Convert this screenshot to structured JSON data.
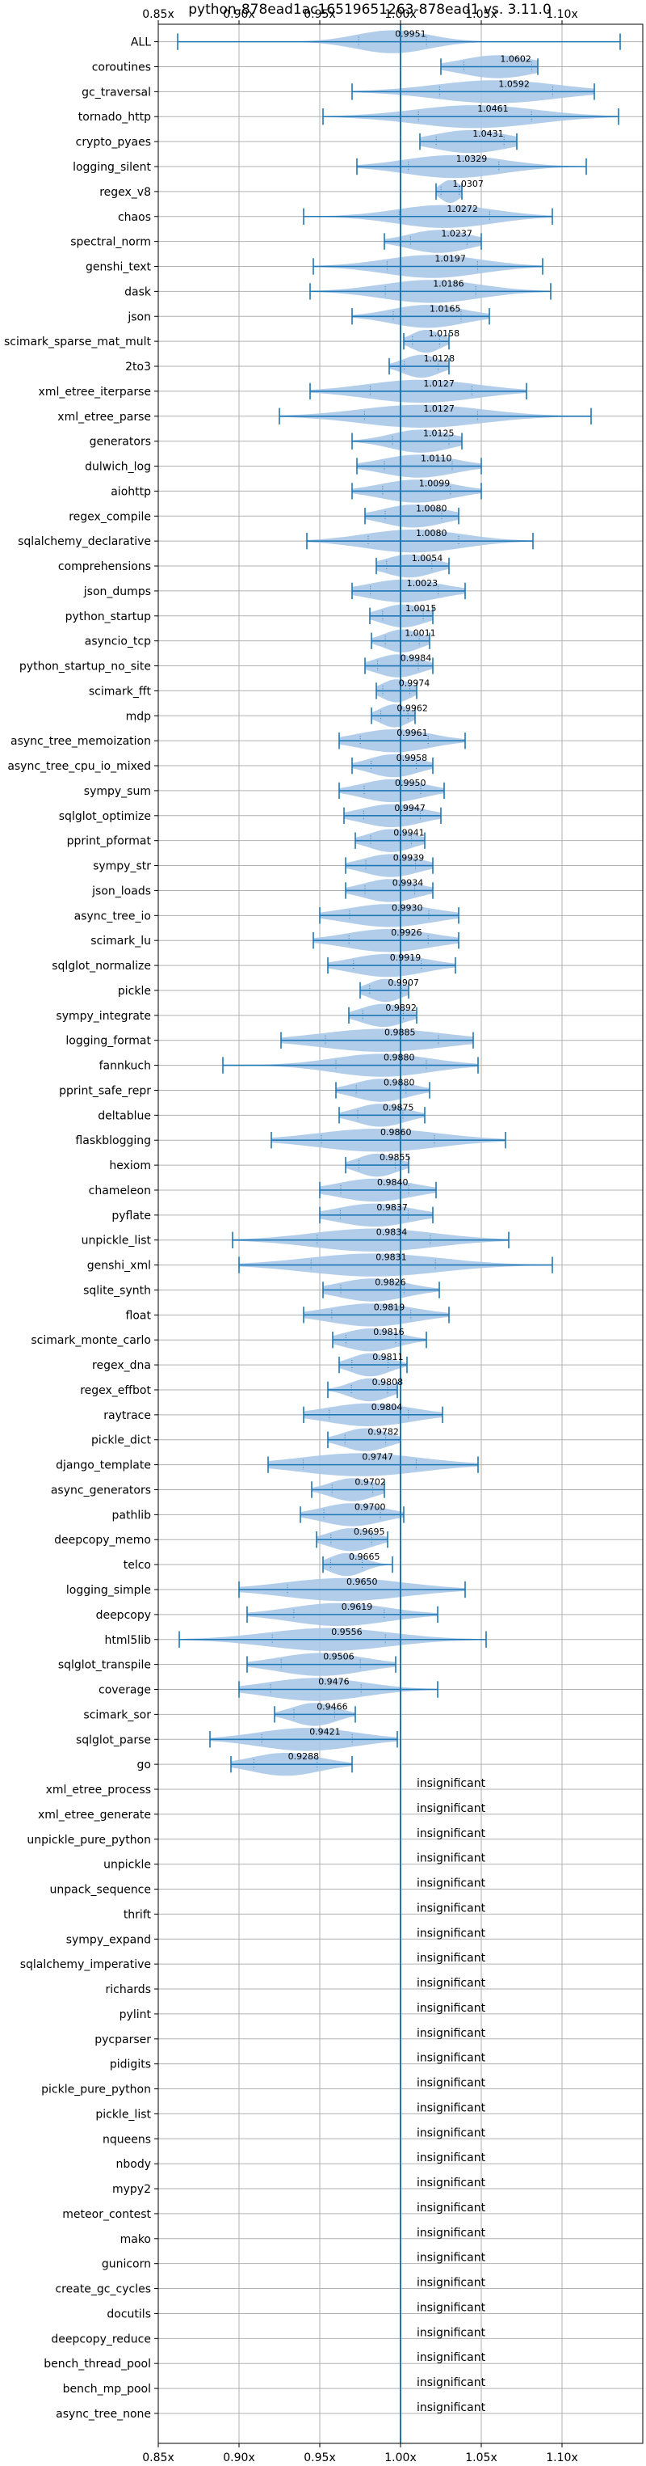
{
  "chart_data": {
    "type": "violin",
    "title": "python-878ead1ac16519651263-878ead1 vs. 3.11.0",
    "x_tick_labels": [
      "0.85x",
      "0.90x",
      "0.95x",
      "1.00x",
      "1.05x",
      "1.10x"
    ],
    "x_ticks": [
      0.85,
      0.9,
      0.95,
      1.0,
      1.05,
      1.1
    ],
    "xlim": [
      0.85,
      1.15
    ],
    "reference_line": 1.0,
    "grid": true,
    "colors": {
      "body": "#aac8e8",
      "line": "#1f77b4",
      "grid": "#b0b0b0"
    },
    "insignificant_text": "insignificant",
    "benchmarks": [
      {
        "name": "ALL",
        "label": "0.9951",
        "mean": 0.9951,
        "min": 0.862,
        "max": 1.136,
        "spread": 0.03
      },
      {
        "name": "coroutines",
        "label": "1.0602",
        "mean": 1.0602,
        "min": 1.025,
        "max": 1.085,
        "spread": 0.03
      },
      {
        "name": "gc_traversal",
        "label": "1.0592",
        "mean": 1.0592,
        "min": 0.97,
        "max": 1.12,
        "spread": 0.05
      },
      {
        "name": "tornado_http",
        "label": "1.0461",
        "mean": 1.0461,
        "min": 0.952,
        "max": 1.135,
        "spread": 0.05
      },
      {
        "name": "crypto_pyaes",
        "label": "1.0431",
        "mean": 1.0431,
        "min": 1.012,
        "max": 1.072,
        "spread": 0.03
      },
      {
        "name": "logging_silent",
        "label": "1.0329",
        "mean": 1.0329,
        "min": 0.973,
        "max": 1.115,
        "spread": 0.04
      },
      {
        "name": "regex_v8",
        "label": "1.0307",
        "mean": 1.0307,
        "min": 1.022,
        "max": 1.038,
        "spread": 0.008
      },
      {
        "name": "chaos",
        "label": "1.0272",
        "mean": 1.0272,
        "min": 0.94,
        "max": 1.094,
        "spread": 0.04
      },
      {
        "name": "spectral_norm",
        "label": "1.0237",
        "mean": 1.0237,
        "min": 0.99,
        "max": 1.05,
        "spread": 0.025
      },
      {
        "name": "genshi_text",
        "label": "1.0197",
        "mean": 1.0197,
        "min": 0.946,
        "max": 1.088,
        "spread": 0.04
      },
      {
        "name": "dask",
        "label": "1.0186",
        "mean": 1.0186,
        "min": 0.944,
        "max": 1.093,
        "spread": 0.04
      },
      {
        "name": "json",
        "label": "1.0165",
        "mean": 1.0165,
        "min": 0.97,
        "max": 1.055,
        "spread": 0.03
      },
      {
        "name": "scimark_sparse_mat_mult",
        "label": "1.0158",
        "mean": 1.0158,
        "min": 1.002,
        "max": 1.03,
        "spread": 0.012
      },
      {
        "name": "2to3",
        "label": "1.0128",
        "mean": 1.0128,
        "min": 0.993,
        "max": 1.03,
        "spread": 0.015
      },
      {
        "name": "xml_etree_iterparse",
        "label": "1.0127",
        "mean": 1.0127,
        "min": 0.944,
        "max": 1.078,
        "spread": 0.045
      },
      {
        "name": "xml_etree_parse",
        "label": "1.0127",
        "mean": 1.0127,
        "min": 0.925,
        "max": 1.118,
        "spread": 0.05
      },
      {
        "name": "generators",
        "label": "1.0125",
        "mean": 1.0125,
        "min": 0.97,
        "max": 1.038,
        "spread": 0.025
      },
      {
        "name": "dulwich_log",
        "label": "1.0110",
        "mean": 1.011,
        "min": 0.973,
        "max": 1.05,
        "spread": 0.03
      },
      {
        "name": "aiohttp",
        "label": "1.0099",
        "mean": 1.0099,
        "min": 0.97,
        "max": 1.05,
        "spread": 0.03
      },
      {
        "name": "regex_compile",
        "label": "1.0080",
        "mean": 1.008,
        "min": 0.978,
        "max": 1.036,
        "spread": 0.025
      },
      {
        "name": "sqlalchemy_declarative",
        "label": "1.0080",
        "mean": 1.008,
        "min": 0.942,
        "max": 1.082,
        "spread": 0.04
      },
      {
        "name": "comprehensions",
        "label": "1.0054",
        "mean": 1.0054,
        "min": 0.985,
        "max": 1.03,
        "spread": 0.02
      },
      {
        "name": "json_dumps",
        "label": "1.0023",
        "mean": 1.0023,
        "min": 0.97,
        "max": 1.04,
        "spread": 0.03
      },
      {
        "name": "python_startup",
        "label": "1.0015",
        "mean": 1.0015,
        "min": 0.981,
        "max": 1.02,
        "spread": 0.018
      },
      {
        "name": "asyncio_tcp",
        "label": "1.0011",
        "mean": 1.0011,
        "min": 0.982,
        "max": 1.018,
        "spread": 0.015
      },
      {
        "name": "python_startup_no_site",
        "label": "0.9984",
        "mean": 0.9984,
        "min": 0.978,
        "max": 1.02,
        "spread": 0.018
      },
      {
        "name": "scimark_fft",
        "label": "0.9974",
        "mean": 0.9974,
        "min": 0.985,
        "max": 1.01,
        "spread": 0.012
      },
      {
        "name": "mdp",
        "label": "0.9962",
        "mean": 0.9962,
        "min": 0.982,
        "max": 1.009,
        "spread": 0.012
      },
      {
        "name": "async_tree_memoization",
        "label": "0.9961",
        "mean": 0.9961,
        "min": 0.962,
        "max": 1.04,
        "spread": 0.03
      },
      {
        "name": "async_tree_cpu_io_mixed",
        "label": "0.9958",
        "mean": 0.9958,
        "min": 0.97,
        "max": 1.02,
        "spread": 0.02
      },
      {
        "name": "sympy_sum",
        "label": "0.9950",
        "mean": 0.995,
        "min": 0.962,
        "max": 1.027,
        "spread": 0.025
      },
      {
        "name": "sqlglot_optimize",
        "label": "0.9947",
        "mean": 0.9947,
        "min": 0.965,
        "max": 1.025,
        "spread": 0.025
      },
      {
        "name": "pprint_pformat",
        "label": "0.9941",
        "mean": 0.9941,
        "min": 0.972,
        "max": 1.015,
        "spread": 0.018
      },
      {
        "name": "sympy_str",
        "label": "0.9939",
        "mean": 0.9939,
        "min": 0.966,
        "max": 1.02,
        "spread": 0.022
      },
      {
        "name": "json_loads",
        "label": "0.9934",
        "mean": 0.9934,
        "min": 0.966,
        "max": 1.02,
        "spread": 0.022
      },
      {
        "name": "async_tree_io",
        "label": "0.9930",
        "mean": 0.993,
        "min": 0.95,
        "max": 1.036,
        "spread": 0.035
      },
      {
        "name": "scimark_lu",
        "label": "0.9926",
        "mean": 0.9926,
        "min": 0.946,
        "max": 1.036,
        "spread": 0.035
      },
      {
        "name": "sqlglot_normalize",
        "label": "0.9919",
        "mean": 0.9919,
        "min": 0.955,
        "max": 1.034,
        "spread": 0.03
      },
      {
        "name": "pickle",
        "label": "0.9907",
        "mean": 0.9907,
        "min": 0.975,
        "max": 1.005,
        "spread": 0.014
      },
      {
        "name": "sympy_integrate",
        "label": "0.9892",
        "mean": 0.9892,
        "min": 0.968,
        "max": 1.01,
        "spread": 0.018
      },
      {
        "name": "logging_format",
        "label": "0.9885",
        "mean": 0.9885,
        "min": 0.926,
        "max": 1.045,
        "spread": 0.05
      },
      {
        "name": "fannkuch",
        "label": "0.9880",
        "mean": 0.988,
        "min": 0.89,
        "max": 1.048,
        "spread": 0.04
      },
      {
        "name": "pprint_safe_repr",
        "label": "0.9880",
        "mean": 0.988,
        "min": 0.96,
        "max": 1.018,
        "spread": 0.022
      },
      {
        "name": "deltablue",
        "label": "0.9875",
        "mean": 0.9875,
        "min": 0.962,
        "max": 1.015,
        "spread": 0.02
      },
      {
        "name": "flaskblogging",
        "label": "0.9860",
        "mean": 0.986,
        "min": 0.92,
        "max": 1.065,
        "spread": 0.05
      },
      {
        "name": "hexiom",
        "label": "0.9855",
        "mean": 0.9855,
        "min": 0.966,
        "max": 1.005,
        "spread": 0.016
      },
      {
        "name": "chameleon",
        "label": "0.9840",
        "mean": 0.984,
        "min": 0.95,
        "max": 1.022,
        "spread": 0.03
      },
      {
        "name": "pyflate",
        "label": "0.9837",
        "mean": 0.9837,
        "min": 0.95,
        "max": 1.02,
        "spread": 0.03
      },
      {
        "name": "unpickle_list",
        "label": "0.9834",
        "mean": 0.9834,
        "min": 0.896,
        "max": 1.067,
        "spread": 0.05
      },
      {
        "name": "genshi_xml",
        "label": "0.9831",
        "mean": 0.9831,
        "min": 0.9,
        "max": 1.094,
        "spread": 0.055
      },
      {
        "name": "sqlite_synth",
        "label": "0.9826",
        "mean": 0.9826,
        "min": 0.952,
        "max": 1.024,
        "spread": 0.028
      },
      {
        "name": "float",
        "label": "0.9819",
        "mean": 0.9819,
        "min": 0.94,
        "max": 1.03,
        "spread": 0.035
      },
      {
        "name": "scimark_monte_carlo",
        "label": "0.9816",
        "mean": 0.9816,
        "min": 0.958,
        "max": 1.016,
        "spread": 0.022
      },
      {
        "name": "regex_dna",
        "label": "0.9811",
        "mean": 0.9811,
        "min": 0.962,
        "max": 1.004,
        "spread": 0.016
      },
      {
        "name": "regex_effbot",
        "label": "0.9808",
        "mean": 0.9808,
        "min": 0.955,
        "max": 0.998,
        "spread": 0.016
      },
      {
        "name": "raytrace",
        "label": "0.9804",
        "mean": 0.9804,
        "min": 0.94,
        "max": 1.026,
        "spread": 0.035
      },
      {
        "name": "pickle_dict",
        "label": "0.9782",
        "mean": 0.9782,
        "min": 0.955,
        "max": 1.0,
        "spread": 0.018
      },
      {
        "name": "django_template",
        "label": "0.9747",
        "mean": 0.9747,
        "min": 0.918,
        "max": 1.048,
        "spread": 0.05
      },
      {
        "name": "async_generators",
        "label": "0.9702",
        "mean": 0.9702,
        "min": 0.945,
        "max": 0.99,
        "spread": 0.018
      },
      {
        "name": "pathlib",
        "label": "0.9700",
        "mean": 0.97,
        "min": 0.938,
        "max": 1.002,
        "spread": 0.025
      },
      {
        "name": "deepcopy_memo",
        "label": "0.9695",
        "mean": 0.9695,
        "min": 0.948,
        "max": 0.992,
        "spread": 0.018
      },
      {
        "name": "telco",
        "label": "0.9665",
        "mean": 0.9665,
        "min": 0.952,
        "max": 0.995,
        "spread": 0.014
      },
      {
        "name": "logging_simple",
        "label": "0.9650",
        "mean": 0.965,
        "min": 0.9,
        "max": 1.04,
        "spread": 0.05
      },
      {
        "name": "deepcopy",
        "label": "0.9619",
        "mean": 0.9619,
        "min": 0.905,
        "max": 1.023,
        "spread": 0.04
      },
      {
        "name": "html5lib",
        "label": "0.9556",
        "mean": 0.9556,
        "min": 0.863,
        "max": 1.053,
        "spread": 0.05
      },
      {
        "name": "sqlglot_transpile",
        "label": "0.9506",
        "mean": 0.9506,
        "min": 0.905,
        "max": 0.997,
        "spread": 0.035
      },
      {
        "name": "coverage",
        "label": "0.9476",
        "mean": 0.9476,
        "min": 0.9,
        "max": 1.023,
        "spread": 0.04
      },
      {
        "name": "scimark_sor",
        "label": "0.9466",
        "mean": 0.9466,
        "min": 0.922,
        "max": 0.972,
        "spread": 0.018
      },
      {
        "name": "sqlglot_parse",
        "label": "0.9421",
        "mean": 0.9421,
        "min": 0.882,
        "max": 0.998,
        "spread": 0.04
      },
      {
        "name": "go",
        "label": "0.9288",
        "mean": 0.9288,
        "min": 0.895,
        "max": 0.97,
        "spread": 0.028
      },
      {
        "name": "xml_etree_process",
        "label": "insignificant"
      },
      {
        "name": "xml_etree_generate",
        "label": "insignificant"
      },
      {
        "name": "unpickle_pure_python",
        "label": "insignificant"
      },
      {
        "name": "unpickle",
        "label": "insignificant"
      },
      {
        "name": "unpack_sequence",
        "label": "insignificant"
      },
      {
        "name": "thrift",
        "label": "insignificant"
      },
      {
        "name": "sympy_expand",
        "label": "insignificant"
      },
      {
        "name": "sqlalchemy_imperative",
        "label": "insignificant"
      },
      {
        "name": "richards",
        "label": "insignificant"
      },
      {
        "name": "pylint",
        "label": "insignificant"
      },
      {
        "name": "pycparser",
        "label": "insignificant"
      },
      {
        "name": "pidigits",
        "label": "insignificant"
      },
      {
        "name": "pickle_pure_python",
        "label": "insignificant"
      },
      {
        "name": "pickle_list",
        "label": "insignificant"
      },
      {
        "name": "nqueens",
        "label": "insignificant"
      },
      {
        "name": "nbody",
        "label": "insignificant"
      },
      {
        "name": "mypy2",
        "label": "insignificant"
      },
      {
        "name": "meteor_contest",
        "label": "insignificant"
      },
      {
        "name": "mako",
        "label": "insignificant"
      },
      {
        "name": "gunicorn",
        "label": "insignificant"
      },
      {
        "name": "create_gc_cycles",
        "label": "insignificant"
      },
      {
        "name": "docutils",
        "label": "insignificant"
      },
      {
        "name": "deepcopy_reduce",
        "label": "insignificant"
      },
      {
        "name": "bench_thread_pool",
        "label": "insignificant"
      },
      {
        "name": "bench_mp_pool",
        "label": "insignificant"
      },
      {
        "name": "async_tree_none",
        "label": "insignificant"
      }
    ]
  }
}
